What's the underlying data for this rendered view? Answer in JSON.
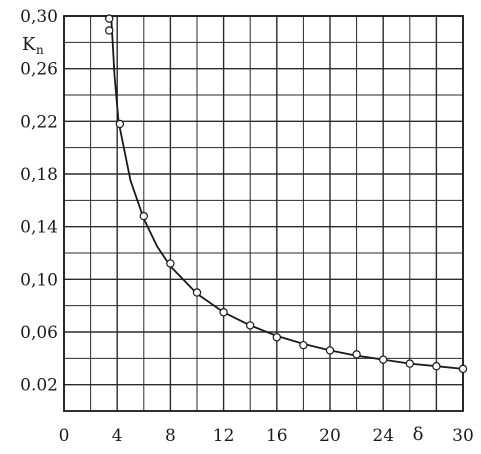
{
  "chart_data": {
    "type": "scatter",
    "xlabel": "δ",
    "ylabel": "K",
    "ylabel_sub": "n",
    "xlim": [
      0,
      30
    ],
    "ylim": [
      0,
      0.3
    ],
    "grid": true,
    "x_ticks": [
      "0",
      "4",
      "8",
      "12",
      "16",
      "20",
      "24",
      "30"
    ],
    "y_ticks": [
      "0,30",
      "0,26",
      "0,22",
      "0,18",
      "0,14",
      "0,10",
      "0,06",
      "0.02"
    ],
    "series": [
      {
        "points": [
          {
            "x": 3.4,
            "y": 0.298
          },
          {
            "x": 3.4,
            "y": 0.289
          },
          {
            "x": 4.2,
            "y": 0.218
          },
          {
            "x": 6.0,
            "y": 0.148
          },
          {
            "x": 8.0,
            "y": 0.112
          },
          {
            "x": 10.0,
            "y": 0.09
          },
          {
            "x": 12.0,
            "y": 0.075
          },
          {
            "x": 14.0,
            "y": 0.065
          },
          {
            "x": 16.0,
            "y": 0.056
          },
          {
            "x": 18.0,
            "y": 0.05
          },
          {
            "x": 20.0,
            "y": 0.046
          },
          {
            "x": 22.0,
            "y": 0.043
          },
          {
            "x": 24.0,
            "y": 0.039
          },
          {
            "x": 26.0,
            "y": 0.036
          },
          {
            "x": 28.0,
            "y": 0.034
          },
          {
            "x": 30.0,
            "y": 0.032
          }
        ],
        "curve": [
          {
            "x": 3.55,
            "y": 0.3
          },
          {
            "x": 3.8,
            "y": 0.255
          },
          {
            "x": 4.1,
            "y": 0.22
          },
          {
            "x": 5.0,
            "y": 0.175
          },
          {
            "x": 6.0,
            "y": 0.146
          },
          {
            "x": 7.0,
            "y": 0.125
          },
          {
            "x": 8.0,
            "y": 0.11
          },
          {
            "x": 10.0,
            "y": 0.089
          },
          {
            "x": 12.0,
            "y": 0.075
          },
          {
            "x": 14.0,
            "y": 0.065
          },
          {
            "x": 16.0,
            "y": 0.057
          },
          {
            "x": 18.0,
            "y": 0.051
          },
          {
            "x": 20.0,
            "y": 0.046
          },
          {
            "x": 22.0,
            "y": 0.042
          },
          {
            "x": 24.0,
            "y": 0.039
          },
          {
            "x": 26.0,
            "y": 0.036
          },
          {
            "x": 28.0,
            "y": 0.034
          },
          {
            "x": 30.0,
            "y": 0.032
          }
        ]
      }
    ]
  },
  "colors": {
    "ink": "#1a1a1a",
    "grid": "#2a2a2a",
    "marker_fill": "#ffffff"
  }
}
